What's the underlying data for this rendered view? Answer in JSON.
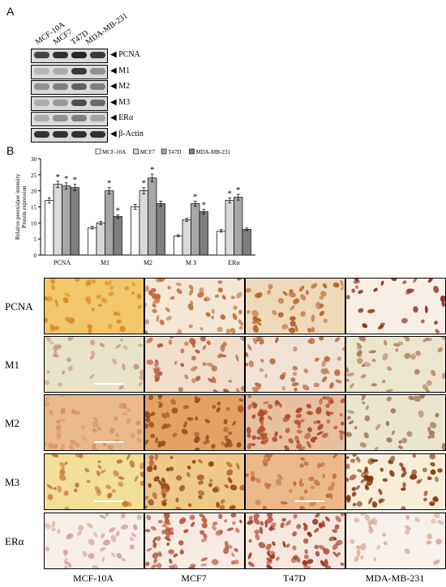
{
  "panel_a": {
    "letter": "A",
    "lanes": [
      "MCF-10A",
      "MCF7",
      "T47D",
      "MDA-MB-231"
    ],
    "blots": [
      {
        "label": "◀ PCNA",
        "intensities": [
          0.75,
          0.85,
          0.9,
          0.8
        ]
      },
      {
        "label": "◀ M1",
        "intensities": [
          0.15,
          0.2,
          0.8,
          0.35
        ]
      },
      {
        "label": "◀ M2",
        "intensities": [
          0.35,
          0.45,
          0.6,
          0.45
        ]
      },
      {
        "label": "◀ M3",
        "intensities": [
          0.2,
          0.3,
          0.7,
          0.55
        ]
      },
      {
        "label": "◀ ERα",
        "intensities": [
          0.2,
          0.35,
          0.45,
          0.25
        ]
      },
      {
        "label": "◀ β-Actin",
        "intensities": [
          0.85,
          0.85,
          0.85,
          0.85
        ]
      }
    ]
  },
  "panel_b": {
    "letter": "B"
  },
  "chart_data": {
    "type": "bar",
    "ylabel": "Relative peroxidase intensity\nProtein expression",
    "ylim": [
      0,
      30
    ],
    "yticks": [
      0,
      5,
      10,
      15,
      20,
      25,
      30
    ],
    "categories": [
      "PCNA",
      "M1",
      "M2",
      "M 3",
      "ERα"
    ],
    "legend_position": "top",
    "series": [
      {
        "name": "MCF-10A",
        "color": "#ffffff",
        "values": [
          17,
          8.5,
          15,
          6,
          7.5
        ],
        "errors": [
          0.8,
          0.4,
          0.8,
          0.3,
          0.4
        ],
        "sig": [
          false,
          false,
          false,
          false,
          false
        ]
      },
      {
        "name": "MCF7",
        "color": "#d9d9d9",
        "values": [
          22,
          10,
          20,
          11,
          17
        ],
        "errors": [
          1.0,
          0.5,
          1.0,
          0.5,
          0.8
        ],
        "sig": [
          true,
          false,
          true,
          false,
          true
        ]
      },
      {
        "name": "T47D",
        "color": "#a6a6a6",
        "values": [
          21.5,
          20,
          24,
          16,
          18
        ],
        "errors": [
          1.0,
          1.0,
          1.2,
          0.8,
          0.9
        ],
        "sig": [
          true,
          true,
          true,
          true,
          true
        ]
      },
      {
        "name": "MDA-MB-231",
        "color": "#7f7f7f",
        "values": [
          21,
          12,
          16,
          13.5,
          8
        ],
        "errors": [
          1.0,
          0.5,
          0.8,
          0.7,
          0.4
        ],
        "sig": [
          true,
          true,
          false,
          true,
          false
        ]
      }
    ],
    "sig_marker": "*"
  },
  "micrographs": {
    "rows": [
      "PCNA",
      "M1",
      "M2",
      "M3",
      "ERα"
    ],
    "columns": [
      "MCF-10A",
      "MCF7",
      "T47D",
      "MDA-MB-231"
    ],
    "colors": {
      "bg_pale": "#f3ead8",
      "bg_warm": "#ebc896",
      "nucleus_dark": "#8b3a1a",
      "nucleus_mid": "#c0692b",
      "nucleus_light": "#d9a470"
    }
  }
}
